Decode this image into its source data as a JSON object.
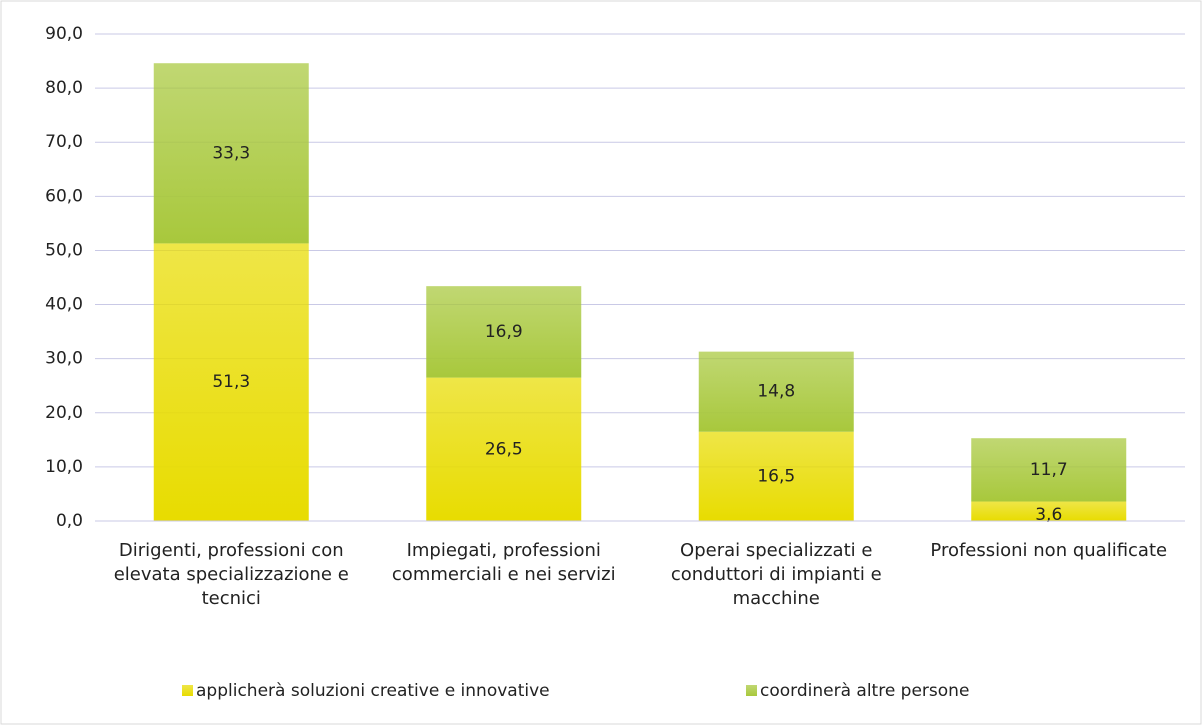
{
  "chart_data": {
    "type": "stacked_bar",
    "categories": [
      "Dirigenti, professioni con elevata specializzazione e tecnici",
      "Impiegati, professioni commerciali e nei servizi",
      "Operai specializzati e conduttori di impianti e macchine",
      "Professioni non qualificate"
    ],
    "series": [
      {
        "name": "applicherà soluzioni creative e innovative",
        "color": "#e8dc00",
        "values": [
          51.3,
          26.5,
          16.5,
          3.6
        ],
        "value_labels": [
          "51,3",
          "26,5",
          "16,5",
          "3,6"
        ]
      },
      {
        "name": "coordinerà altre persone",
        "color": "#a8c83c",
        "values": [
          33.3,
          16.9,
          14.8,
          11.7
        ],
        "value_labels": [
          "33,3",
          "16,9",
          "14,8",
          "11,7"
        ]
      }
    ],
    "ylim": [
      0,
      90
    ],
    "yticks": [
      {
        "value": 0,
        "label": "0,0"
      },
      {
        "value": 10,
        "label": "10,0"
      },
      {
        "value": 20,
        "label": "20,0"
      },
      {
        "value": 30,
        "label": "30,0"
      },
      {
        "value": 40,
        "label": "40,0"
      },
      {
        "value": 50,
        "label": "50,0"
      },
      {
        "value": 60,
        "label": "60,0"
      },
      {
        "value": 70,
        "label": "70,0"
      },
      {
        "value": 80,
        "label": "80,0"
      },
      {
        "value": 90,
        "label": "90,0"
      }
    ],
    "grid": true,
    "legend": "bottom"
  }
}
